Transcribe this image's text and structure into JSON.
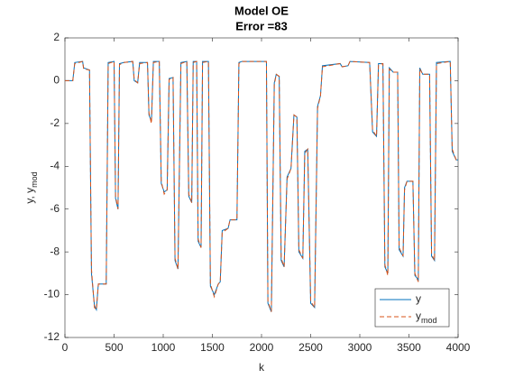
{
  "chart_data": {
    "type": "line",
    "title": [
      "Model OE",
      "Error =83"
    ],
    "xlabel": "k",
    "ylabel": "y, y_{mod}",
    "x": [
      0,
      80,
      100,
      180,
      190,
      250,
      270,
      300,
      320,
      340,
      420,
      440,
      500,
      515,
      540,
      555,
      600,
      690,
      705,
      740,
      760,
      840,
      855,
      880,
      900,
      960,
      980,
      1010,
      1040,
      1060,
      1100,
      1120,
      1150,
      1180,
      1240,
      1260,
      1290,
      1305,
      1340,
      1355,
      1385,
      1400,
      1460,
      1480,
      1520,
      1560,
      1580,
      1600,
      1660,
      1680,
      1750,
      1770,
      1800,
      2050,
      2065,
      2100,
      2130,
      2150,
      2180,
      2200,
      2230,
      2260,
      2300,
      2330,
      2360,
      2380,
      2420,
      2440,
      2470,
      2500,
      2540,
      2570,
      2600,
      2620,
      2800,
      2820,
      2880,
      2900,
      3100,
      3130,
      3170,
      3190,
      3235,
      3255,
      3285,
      3300,
      3340,
      3385,
      3400,
      3440,
      3455,
      3480,
      3540,
      3560,
      3595,
      3610,
      3640,
      3710,
      3730,
      3760,
      3780,
      3920,
      3940,
      3980,
      4000
    ],
    "series": [
      {
        "name": "y",
        "color": "#0072bd",
        "dash": false,
        "values": [
          0,
          0,
          0.85,
          0.9,
          0.6,
          0.5,
          -9,
          -10.5,
          -10.7,
          -9.5,
          -9.5,
          0.85,
          0.9,
          -5.5,
          -6,
          0.8,
          0.85,
          0.9,
          0,
          -0.1,
          0.85,
          0.85,
          -1.6,
          -1.9,
          0.9,
          0.9,
          -4.8,
          -5.2,
          -5.1,
          0.1,
          0.15,
          -8.4,
          -8.8,
          0.85,
          0.9,
          -5.4,
          -5.7,
          0.9,
          0.9,
          -7.5,
          -7.8,
          0.9,
          0.9,
          -9.6,
          -10,
          -9.5,
          -9.4,
          -7,
          -6.9,
          -6.5,
          -6.5,
          0.85,
          0.9,
          0.9,
          -10.4,
          -10.8,
          -0.1,
          0.3,
          0.2,
          -8.4,
          -8.7,
          -4.5,
          -4.1,
          -1.6,
          -1.7,
          -8,
          -8.3,
          -3.3,
          -3.2,
          -10.4,
          -10.6,
          -1.2,
          -0.7,
          0.7,
          0.8,
          0.65,
          0.7,
          0.9,
          0.85,
          -2.4,
          -2.6,
          0.8,
          0.8,
          -8.7,
          -9,
          0.6,
          0.4,
          0.4,
          -7.9,
          -8.2,
          -5,
          -4.7,
          -4.7,
          -9.1,
          -9.3,
          0.6,
          0.3,
          0.3,
          -8.2,
          -8.4,
          0.85,
          0.9,
          -3.3,
          -3.7,
          -3.7
        ]
      },
      {
        "name": "y_{mod}",
        "color": "#d95319",
        "dash": true,
        "values": [
          0,
          0,
          0.8,
          0.9,
          0.55,
          0.5,
          -8.8,
          -10.6,
          -10.7,
          -9.5,
          -9.5,
          0.8,
          0.9,
          -5.4,
          -6,
          0.75,
          0.85,
          0.9,
          0.05,
          -0.1,
          0.8,
          0.85,
          -1.5,
          -2,
          0.85,
          0.9,
          -4.7,
          -5.3,
          -5.1,
          0.05,
          0.15,
          -8.3,
          -8.8,
          0.8,
          0.9,
          -5.3,
          -5.7,
          0.85,
          0.9,
          -7.4,
          -7.8,
          0.85,
          0.9,
          -9.5,
          -10.1,
          -9.5,
          -9.4,
          -7.1,
          -6.9,
          -6.5,
          -6.5,
          0.8,
          0.9,
          0.9,
          -10.3,
          -10.8,
          -0.2,
          0.3,
          0.2,
          -8.3,
          -8.7,
          -4.6,
          -4.1,
          -1.6,
          -1.7,
          -7.9,
          -8.3,
          -3.4,
          -3.2,
          -10.3,
          -10.6,
          -1.3,
          -0.7,
          0.65,
          0.8,
          0.65,
          0.7,
          0.9,
          0.85,
          -2.3,
          -2.6,
          0.75,
          0.8,
          -8.6,
          -9.1,
          0.55,
          0.4,
          0.4,
          -7.8,
          -8.2,
          -5.1,
          -4.7,
          -4.7,
          -9,
          -9.4,
          0.55,
          0.3,
          0.3,
          -8.1,
          -8.4,
          0.8,
          0.9,
          -3.2,
          -3.7,
          -3.7
        ]
      }
    ],
    "xlim": [
      0,
      4000
    ],
    "xticks": [
      0,
      500,
      1000,
      1500,
      2000,
      2500,
      3000,
      3500,
      4000
    ],
    "ylim": [
      -12,
      2
    ],
    "yticks": [
      -12,
      -10,
      -8,
      -6,
      -4,
      -2,
      0,
      2
    ],
    "legend": "southeast"
  }
}
